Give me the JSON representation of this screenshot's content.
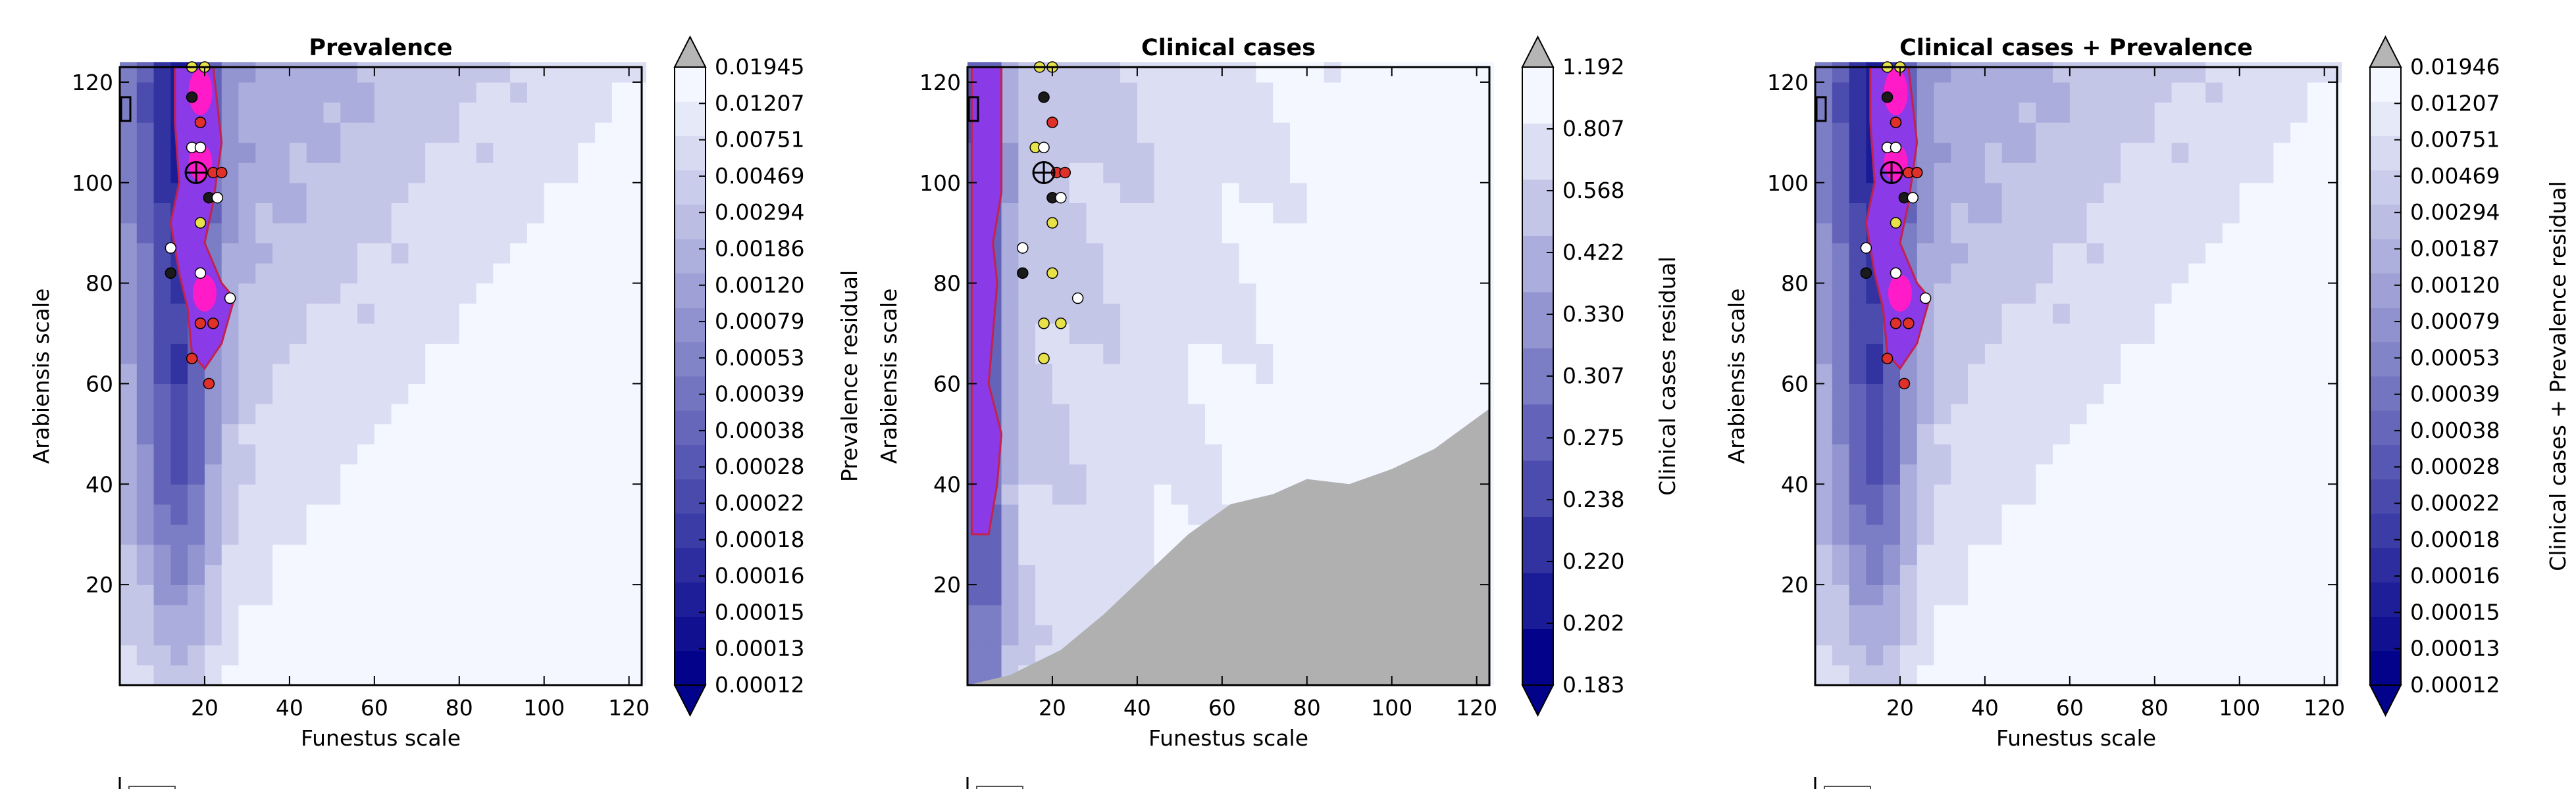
{
  "figure": {
    "background": "#ffffff"
  },
  "colors": {
    "contour_low": "#02028a",
    "contour_high": "#f4f7ff",
    "hatch_region": "#b0b0b0",
    "highlight_fill": "#8a3ae6",
    "highlight_edge": "#c4224d",
    "hot_spot": "#ff1cc8",
    "point_black": "#1a1a1a",
    "point_red": "#e0302a",
    "point_yellow": "#e7e24a",
    "point_white": "#ffffff"
  },
  "chart_data": [
    {
      "type": "heatmap",
      "title": "Prevalence",
      "xlabel": "Funestus scale",
      "ylabel": "Arabiensis scale",
      "xlim": [
        0,
        123
      ],
      "ylim": [
        0,
        123
      ],
      "xticks": [
        20,
        40,
        60,
        80,
        100,
        120
      ],
      "yticks": [
        20,
        40,
        60,
        80,
        100,
        120
      ],
      "colorbar_label": "Prevalence residual",
      "colorbar_levels": [
        "0.00012",
        "0.00013",
        "0.00015",
        "0.00016",
        "0.00018",
        "0.00022",
        "0.00028",
        "0.00038",
        "0.00039",
        "0.00053",
        "0.00079",
        "0.00120",
        "0.00186",
        "0.00294",
        "0.00469",
        "0.00751",
        "0.01207",
        "0.01945"
      ],
      "colorbar_extend": "both",
      "minimum_marker": [
        18,
        102
      ],
      "points": [
        {
          "x": 17,
          "y": 123,
          "c": "yellow"
        },
        {
          "x": 20,
          "y": 123,
          "c": "yellow"
        },
        {
          "x": 17,
          "y": 117,
          "c": "black"
        },
        {
          "x": 19,
          "y": 112,
          "c": "red"
        },
        {
          "x": 17,
          "y": 107,
          "c": "white"
        },
        {
          "x": 19,
          "y": 107,
          "c": "white"
        },
        {
          "x": 22,
          "y": 102,
          "c": "red"
        },
        {
          "x": 24,
          "y": 102,
          "c": "red"
        },
        {
          "x": 21,
          "y": 97,
          "c": "black"
        },
        {
          "x": 23,
          "y": 97,
          "c": "white"
        },
        {
          "x": 19,
          "y": 92,
          "c": "yellow"
        },
        {
          "x": 12,
          "y": 87,
          "c": "white"
        },
        {
          "x": 12,
          "y": 82,
          "c": "black"
        },
        {
          "x": 19,
          "y": 82,
          "c": "white"
        },
        {
          "x": 26,
          "y": 77,
          "c": "white"
        },
        {
          "x": 19,
          "y": 72,
          "c": "red"
        },
        {
          "x": 22,
          "y": 72,
          "c": "red"
        },
        {
          "x": 17,
          "y": 65,
          "c": "red"
        },
        {
          "x": 21,
          "y": 60,
          "c": "red"
        }
      ]
    },
    {
      "type": "heatmap",
      "title": "Clinical cases",
      "xlabel": "Funestus scale",
      "ylabel": "Arabiensis scale",
      "xlim": [
        0,
        123
      ],
      "ylim": [
        0,
        123
      ],
      "xticks": [
        20,
        40,
        60,
        80,
        100,
        120
      ],
      "yticks": [
        20,
        40,
        60,
        80,
        100,
        120
      ],
      "colorbar_label": "Clinical cases residual",
      "colorbar_levels": [
        "0.183",
        "0.202",
        "0.220",
        "0.238",
        "0.275",
        "0.307",
        "0.330",
        "0.422",
        "0.568",
        "0.807",
        "1.192"
      ],
      "colorbar_extend": "both",
      "minimum_marker": [
        18,
        102
      ],
      "points": [
        {
          "x": 17,
          "y": 123,
          "c": "yellow"
        },
        {
          "x": 20,
          "y": 123,
          "c": "yellow"
        },
        {
          "x": 18,
          "y": 117,
          "c": "black"
        },
        {
          "x": 20,
          "y": 112,
          "c": "red"
        },
        {
          "x": 16,
          "y": 107,
          "c": "yellow"
        },
        {
          "x": 18,
          "y": 107,
          "c": "white"
        },
        {
          "x": 21,
          "y": 102,
          "c": "red"
        },
        {
          "x": 23,
          "y": 102,
          "c": "red"
        },
        {
          "x": 20,
          "y": 97,
          "c": "black"
        },
        {
          "x": 22,
          "y": 97,
          "c": "white"
        },
        {
          "x": 20,
          "y": 92,
          "c": "yellow"
        },
        {
          "x": 13,
          "y": 87,
          "c": "white"
        },
        {
          "x": 13,
          "y": 82,
          "c": "black"
        },
        {
          "x": 20,
          "y": 82,
          "c": "yellow"
        },
        {
          "x": 26,
          "y": 77,
          "c": "white"
        },
        {
          "x": 18,
          "y": 72,
          "c": "yellow"
        },
        {
          "x": 22,
          "y": 72,
          "c": "yellow"
        },
        {
          "x": 18,
          "y": 65,
          "c": "yellow"
        }
      ]
    },
    {
      "type": "heatmap",
      "title": "Clinical cases + Prevalence",
      "xlabel": "Funestus scale",
      "ylabel": "Arabiensis scale",
      "xlim": [
        0,
        123
      ],
      "ylim": [
        0,
        123
      ],
      "xticks": [
        20,
        40,
        60,
        80,
        100,
        120
      ],
      "yticks": [
        20,
        40,
        60,
        80,
        100,
        120
      ],
      "colorbar_label": "Clinical cases + Prevalence residual",
      "colorbar_levels": [
        "0.00012",
        "0.00013",
        "0.00015",
        "0.00016",
        "0.00018",
        "0.00022",
        "0.00028",
        "0.00038",
        "0.00039",
        "0.00053",
        "0.00079",
        "0.00120",
        "0.00187",
        "0.00294",
        "0.00469",
        "0.00751",
        "0.01207",
        "0.01946"
      ],
      "colorbar_extend": "both",
      "minimum_marker": [
        18,
        102
      ],
      "points": [
        {
          "x": 17,
          "y": 123,
          "c": "yellow"
        },
        {
          "x": 20,
          "y": 123,
          "c": "yellow"
        },
        {
          "x": 17,
          "y": 117,
          "c": "black"
        },
        {
          "x": 19,
          "y": 112,
          "c": "red"
        },
        {
          "x": 17,
          "y": 107,
          "c": "white"
        },
        {
          "x": 19,
          "y": 107,
          "c": "white"
        },
        {
          "x": 22,
          "y": 102,
          "c": "red"
        },
        {
          "x": 24,
          "y": 102,
          "c": "red"
        },
        {
          "x": 21,
          "y": 97,
          "c": "black"
        },
        {
          "x": 23,
          "y": 97,
          "c": "white"
        },
        {
          "x": 19,
          "y": 92,
          "c": "yellow"
        },
        {
          "x": 12,
          "y": 87,
          "c": "white"
        },
        {
          "x": 12,
          "y": 82,
          "c": "black"
        },
        {
          "x": 19,
          "y": 82,
          "c": "white"
        },
        {
          "x": 26,
          "y": 77,
          "c": "white"
        },
        {
          "x": 19,
          "y": 72,
          "c": "red"
        },
        {
          "x": 22,
          "y": 72,
          "c": "red"
        },
        {
          "x": 17,
          "y": 65,
          "c": "red"
        },
        {
          "x": 21,
          "y": 60,
          "c": "red"
        }
      ]
    }
  ]
}
